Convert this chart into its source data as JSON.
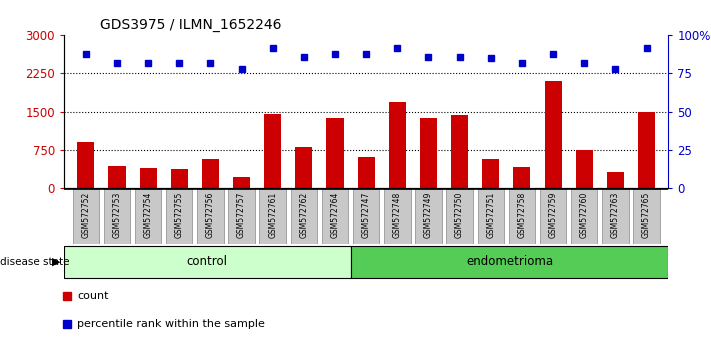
{
  "title": "GDS3975 / ILMN_1652246",
  "samples": [
    "GSM572752",
    "GSM572753",
    "GSM572754",
    "GSM572755",
    "GSM572756",
    "GSM572757",
    "GSM572761",
    "GSM572762",
    "GSM572764",
    "GSM572747",
    "GSM572748",
    "GSM572749",
    "GSM572750",
    "GSM572751",
    "GSM572758",
    "GSM572759",
    "GSM572760",
    "GSM572763",
    "GSM572765"
  ],
  "counts": [
    900,
    430,
    390,
    370,
    560,
    200,
    1450,
    800,
    1380,
    600,
    1680,
    1380,
    1430,
    570,
    400,
    2100,
    750,
    300,
    1500
  ],
  "percentile_ranks": [
    88,
    82,
    82,
    82,
    82,
    78,
    92,
    86,
    88,
    88,
    92,
    86,
    86,
    85,
    82,
    88,
    82,
    78,
    92
  ],
  "control_count": 9,
  "endometrioma_count": 10,
  "ylim_left": [
    0,
    3000
  ],
  "ylim_right": [
    0,
    100
  ],
  "yticks_left": [
    0,
    750,
    1500,
    2250,
    3000
  ],
  "yticks_right": [
    0,
    25,
    50,
    75,
    100
  ],
  "bar_color": "#CC0000",
  "dot_color": "#0000CC",
  "control_color": "#CCFFCC",
  "endometrioma_color": "#55CC55",
  "bg_color": "#C8C8C8",
  "legend_count_label": "count",
  "legend_pct_label": "percentile rank within the sample",
  "disease_state_label": "disease state",
  "control_label": "control",
  "endometrioma_label": "endometrioma"
}
